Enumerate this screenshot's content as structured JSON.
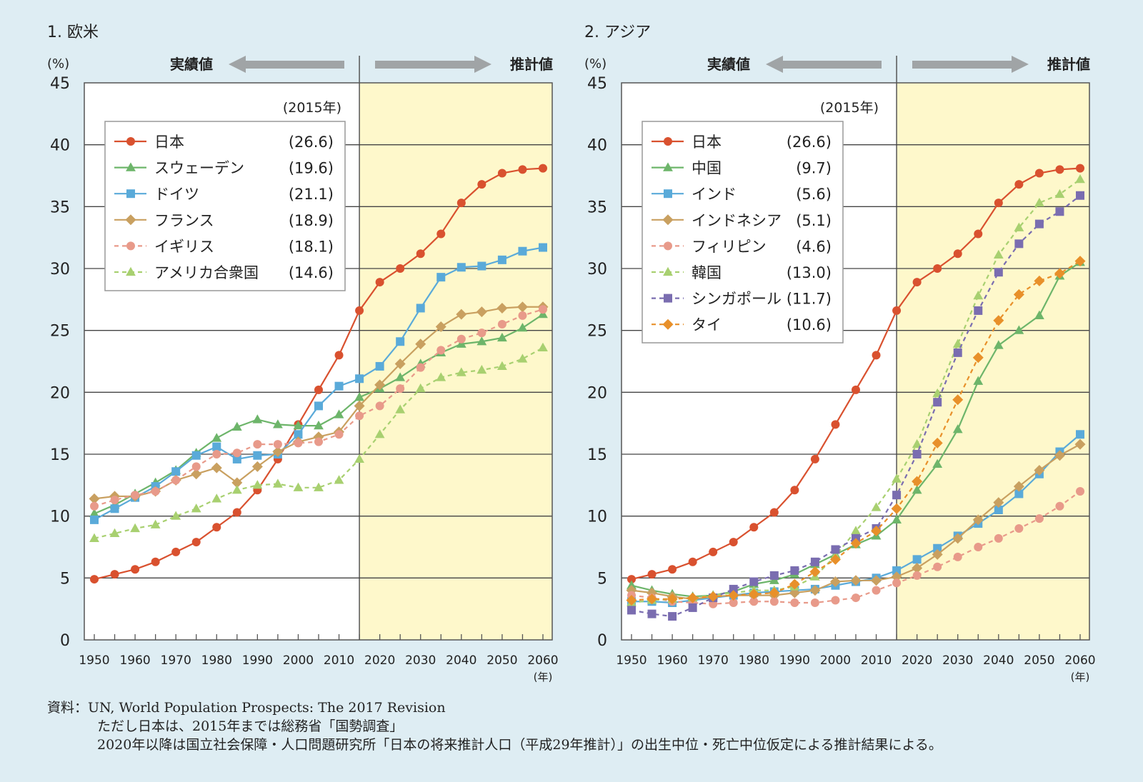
{
  "source": {
    "line1": "資料：UN, World Population Prospects: The 2017 Revision",
    "line2": "ただし日本は、2015年までは総務省「国勢調査」",
    "line3": "2020年以降は国立社会保障・人口問題研究所「日本の将来推計人口（平成29年推計）」の出生中位・死亡中位仮定による推計結果による。"
  },
  "chart_data": [
    {
      "type": "line",
      "title": "1.  欧米",
      "ylabel": "(%)",
      "xlabel": "(年)",
      "actual_label": "実績値",
      "projected_label": "推計値",
      "legend_title": "(2015年)",
      "legend_position": "top-left",
      "ylim": [
        0,
        45
      ],
      "yticks": [
        0,
        5,
        10,
        15,
        20,
        25,
        30,
        35,
        40,
        45
      ],
      "xlim": [
        1950,
        2060
      ],
      "xticks": [
        1950,
        1960,
        1970,
        1980,
        1990,
        2000,
        2010,
        2020,
        2030,
        2040,
        2050,
        2060
      ],
      "projection_start": 2015,
      "grid": true,
      "x": [
        1950,
        1955,
        1960,
        1965,
        1970,
        1975,
        1980,
        1985,
        1990,
        1995,
        2000,
        2005,
        2010,
        2015,
        2020,
        2025,
        2030,
        2035,
        2040,
        2045,
        2050,
        2055,
        2060
      ],
      "series": [
        {
          "name": "日本",
          "value_2015": "(26.6)",
          "color": "#d9512f",
          "marker": "circle",
          "dashed": false,
          "values": [
            4.9,
            5.3,
            5.7,
            6.3,
            7.1,
            7.9,
            9.1,
            10.3,
            12.1,
            14.6,
            17.4,
            20.2,
            23.0,
            26.6,
            28.9,
            30.0,
            31.2,
            32.8,
            35.3,
            36.8,
            37.7,
            38.0,
            38.1
          ]
        },
        {
          "name": "スウェーデン",
          "value_2015": "(19.6)",
          "color": "#6db56a",
          "marker": "triangle",
          "dashed": false,
          "values": [
            10.2,
            10.9,
            11.8,
            12.7,
            13.7,
            15.1,
            16.3,
            17.2,
            17.8,
            17.4,
            17.3,
            17.3,
            18.2,
            19.6,
            20.3,
            21.2,
            22.3,
            23.2,
            23.9,
            24.1,
            24.4,
            25.2,
            26.3
          ]
        },
        {
          "name": "ドイツ",
          "value_2015": "(21.1)",
          "color": "#5aaad9",
          "marker": "square",
          "dashed": false,
          "values": [
            9.7,
            10.6,
            11.5,
            12.4,
            13.6,
            14.9,
            15.6,
            14.6,
            14.9,
            15.0,
            16.6,
            18.9,
            20.5,
            21.1,
            22.1,
            24.1,
            26.8,
            29.3,
            30.1,
            30.2,
            30.7,
            31.4,
            31.7
          ]
        },
        {
          "name": "フランス",
          "value_2015": "(18.9)",
          "color": "#c9a060",
          "marker": "diamond",
          "dashed": false,
          "values": [
            11.4,
            11.6,
            11.6,
            12.0,
            12.9,
            13.4,
            13.9,
            12.7,
            14.0,
            15.2,
            16.0,
            16.4,
            16.8,
            18.9,
            20.6,
            22.3,
            23.9,
            25.3,
            26.3,
            26.5,
            26.8,
            26.9,
            26.9
          ]
        },
        {
          "name": "イギリス",
          "value_2015": "(18.1)",
          "color": "#e89a8a",
          "marker": "circle",
          "dashed": true,
          "values": [
            10.8,
            11.3,
            11.7,
            12.0,
            12.9,
            14.0,
            15.0,
            15.1,
            15.8,
            15.8,
            15.9,
            16.0,
            16.6,
            18.1,
            18.9,
            20.3,
            22.0,
            23.4,
            24.3,
            24.8,
            25.5,
            26.2,
            26.7
          ]
        },
        {
          "name": "アメリカ合衆国",
          "value_2015": "(14.6)",
          "color": "#a8d070",
          "marker": "triangle",
          "dashed": true,
          "values": [
            8.2,
            8.6,
            9.0,
            9.3,
            10.0,
            10.6,
            11.4,
            12.1,
            12.5,
            12.6,
            12.3,
            12.3,
            12.9,
            14.6,
            16.6,
            18.6,
            20.3,
            21.2,
            21.6,
            21.8,
            22.1,
            22.7,
            23.6
          ]
        }
      ]
    },
    {
      "type": "line",
      "title": "2.  アジア",
      "ylabel": "(%)",
      "xlabel": "(年)",
      "actual_label": "実績値",
      "projected_label": "推計値",
      "legend_title": "(2015年)",
      "legend_position": "top-left",
      "ylim": [
        0,
        45
      ],
      "yticks": [
        0,
        5,
        10,
        15,
        20,
        25,
        30,
        35,
        40,
        45
      ],
      "xlim": [
        1950,
        2060
      ],
      "xticks": [
        1950,
        1960,
        1970,
        1980,
        1990,
        2000,
        2010,
        2020,
        2030,
        2040,
        2050,
        2060
      ],
      "projection_start": 2015,
      "grid": true,
      "x": [
        1950,
        1955,
        1960,
        1965,
        1970,
        1975,
        1980,
        1985,
        1990,
        1995,
        2000,
        2005,
        2010,
        2015,
        2020,
        2025,
        2030,
        2035,
        2040,
        2045,
        2050,
        2055,
        2060
      ],
      "series": [
        {
          "name": "日本",
          "value_2015": "(26.6)",
          "color": "#d9512f",
          "marker": "circle",
          "dashed": false,
          "values": [
            4.9,
            5.3,
            5.7,
            6.3,
            7.1,
            7.9,
            9.1,
            10.3,
            12.1,
            14.6,
            17.4,
            20.2,
            23.0,
            26.6,
            28.9,
            30.0,
            31.2,
            32.8,
            35.3,
            36.8,
            37.7,
            38.0,
            38.1
          ]
        },
        {
          "name": "中国",
          "value_2015": "(9.7)",
          "color": "#6db56a",
          "marker": "triangle",
          "dashed": false,
          "values": [
            4.4,
            4.0,
            3.7,
            3.5,
            3.6,
            3.9,
            4.5,
            4.8,
            5.3,
            6.1,
            6.9,
            7.7,
            8.4,
            9.7,
            12.1,
            14.2,
            17.0,
            20.9,
            23.8,
            25.0,
            26.2,
            29.4,
            30.5
          ]
        },
        {
          "name": "インド",
          "value_2015": "(5.6)",
          "color": "#5aaad9",
          "marker": "square",
          "dashed": false,
          "values": [
            3.1,
            3.1,
            3.0,
            3.2,
            3.4,
            3.6,
            3.8,
            3.9,
            4.0,
            4.1,
            4.4,
            4.7,
            5.0,
            5.6,
            6.5,
            7.4,
            8.4,
            9.4,
            10.5,
            11.8,
            13.4,
            15.2,
            16.6
          ]
        },
        {
          "name": "インドネシア",
          "value_2015": "(5.1)",
          "color": "#c9a060",
          "marker": "diamond",
          "dashed": false,
          "values": [
            4.0,
            3.8,
            3.5,
            3.3,
            3.5,
            3.6,
            3.6,
            3.6,
            3.8,
            4.0,
            4.7,
            4.8,
            4.8,
            5.1,
            5.8,
            6.9,
            8.2,
            9.7,
            11.1,
            12.4,
            13.7,
            14.9,
            15.8
          ]
        },
        {
          "name": "フィリピン",
          "value_2015": "(4.6)",
          "color": "#e89a8a",
          "marker": "circle",
          "dashed": true,
          "values": [
            3.6,
            3.4,
            3.1,
            3.0,
            2.9,
            3.0,
            3.1,
            3.1,
            3.0,
            3.0,
            3.2,
            3.4,
            4.0,
            4.6,
            5.2,
            5.9,
            6.7,
            7.5,
            8.2,
            9.0,
            9.8,
            10.8,
            12.0
          ]
        },
        {
          "name": "韓国",
          "value_2015": "(13.0)",
          "color": "#a8d070",
          "marker": "triangle",
          "dashed": true,
          "values": [
            3.0,
            3.2,
            3.3,
            3.4,
            3.6,
            3.8,
            4.0,
            4.0,
            4.3,
            5.1,
            6.8,
            8.8,
            10.7,
            13.0,
            15.8,
            19.9,
            23.9,
            27.8,
            31.1,
            33.3,
            35.3,
            36.0,
            37.2
          ]
        },
        {
          "name": "シンガポール",
          "value_2015": "(11.7)",
          "color": "#7a6db0",
          "marker": "square",
          "dashed": true,
          "values": [
            2.4,
            2.1,
            1.9,
            2.6,
            3.4,
            4.1,
            4.7,
            5.2,
            5.6,
            6.3,
            7.3,
            8.2,
            9.0,
            11.7,
            15.0,
            19.2,
            23.2,
            26.6,
            29.7,
            32.0,
            33.6,
            34.6,
            35.9
          ]
        },
        {
          "name": "タイ",
          "value_2015": "(10.6)",
          "color": "#e8902a",
          "marker": "diamond",
          "dashed": true,
          "values": [
            3.2,
            3.3,
            3.3,
            3.4,
            3.5,
            3.6,
            3.7,
            3.8,
            4.5,
            5.5,
            6.5,
            7.8,
            8.8,
            10.6,
            12.8,
            15.9,
            19.4,
            22.8,
            25.8,
            27.9,
            29.0,
            29.6,
            30.6
          ]
        }
      ]
    }
  ]
}
